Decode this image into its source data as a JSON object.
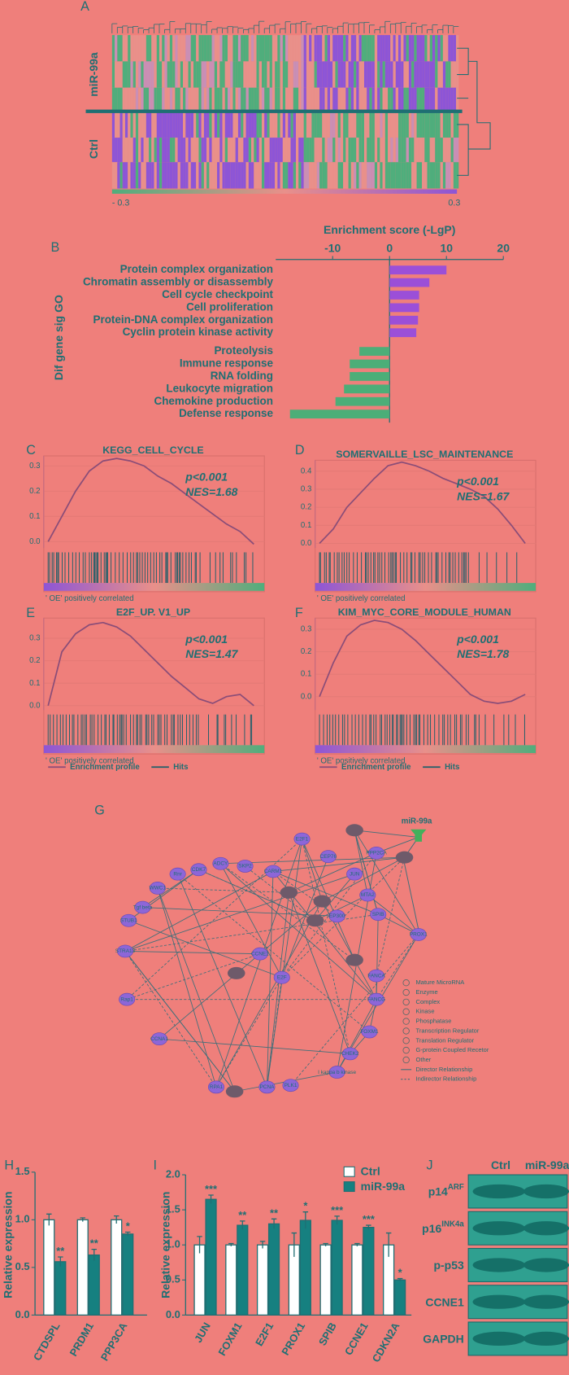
{
  "panel_labels": [
    "A",
    "B",
    "C",
    "D",
    "E",
    "F",
    "G",
    "H",
    "I",
    "J"
  ],
  "heatmap": {
    "groups": [
      "miR-99a",
      "Ctrl"
    ],
    "scale_labels": [
      "- 0.3",
      "0.3"
    ]
  },
  "chart_data": [
    {
      "type": "hbar",
      "xlabel": "Enrichment score  (-LgP)",
      "ylabel": "Dif gene sig  GO",
      "categories": [
        "Protein complex organization",
        "Chromatin assembly or disassembly",
        "Cell cycle checkpoint",
        "Cell proliferation",
        "Protein-DNA complex organization",
        "Cyclin protein kinase activity",
        "Proteolysis",
        "Immune response",
        "RNA folding",
        "Leukocyte migration",
        "Chemokine production",
        "Defense response"
      ],
      "values": [
        10,
        7,
        5.2,
        5.2,
        5,
        4.7,
        -5.3,
        -7,
        -7,
        -8,
        -9.5,
        -17.5
      ],
      "colors": {
        "positive": "#9b4fd8",
        "negative": "#4cae78"
      },
      "xlim": [
        -20,
        20
      ],
      "xticks": [
        -10,
        0,
        10,
        20
      ]
    },
    {
      "type": "gsea",
      "title": "KEGG_CELL_CYCLE",
      "annotations": [
        "p<0.001",
        "NES=1.68"
      ],
      "correlation_label": "' OE' positively correlated",
      "values": [
        0,
        0.1,
        0.2,
        0.28,
        0.32,
        0.33,
        0.32,
        0.3,
        0.26,
        0.23,
        0.19,
        0.15,
        0.11,
        0.07,
        0.04,
        -0.01
      ],
      "ylim": [
        -0.025,
        0.34
      ],
      "yticks": [
        {
          "value": 0,
          "label": "0.0"
        },
        0.1,
        0.2,
        0.3
      ],
      "color": "#8a4d78",
      "grid": true
    },
    {
      "type": "gsea",
      "title": "SOMERVAILLE_LSC_MAINTENANCE",
      "annotations": [
        "p<0.001",
        "NES=1.67"
      ],
      "correlation_label": "' OE' positively correlated",
      "values": [
        0,
        0.08,
        0.2,
        0.28,
        0.36,
        0.43,
        0.45,
        0.43,
        0.4,
        0.36,
        0.33,
        0.3,
        0.26,
        0.19,
        0.1,
        0
      ],
      "ylim": [
        -0.025,
        0.46
      ],
      "yticks": [
        {
          "value": 0,
          "label": "0.0"
        },
        0.1,
        0.2,
        0.3,
        0.4
      ],
      "color": "#8a4d78",
      "grid": true
    },
    {
      "type": "gsea",
      "title": "E2F_UP. V1_UP",
      "annotations": [
        "p<0.001",
        "NES=1.47"
      ],
      "correlation_label": "' OE' positively correlated",
      "values": [
        0,
        0.24,
        0.32,
        0.36,
        0.37,
        0.35,
        0.31,
        0.25,
        0.19,
        0.13,
        0.08,
        0.03,
        0.01,
        0.04,
        0.05,
        0
      ],
      "ylim": [
        -0.02,
        0.39
      ],
      "yticks": [
        {
          "value": 0,
          "label": "0.0"
        },
        0.1,
        0.2,
        0.3
      ],
      "color": "#8a4d78",
      "grid": true
    },
    {
      "type": "gsea",
      "title": "KIM_MYC_CORE_MODULE_HUMAN",
      "annotations": [
        "p<0.001",
        "NES=1.78"
      ],
      "correlation_label": "' OE' positively correlated",
      "values": [
        0,
        0.15,
        0.27,
        0.32,
        0.34,
        0.33,
        0.3,
        0.25,
        0.19,
        0.13,
        0.07,
        0.01,
        -0.02,
        -0.03,
        -0.02,
        0.01
      ],
      "ylim": [
        -0.06,
        0.35
      ],
      "yticks": [
        {
          "value": 0,
          "label": "0.0"
        },
        0.1,
        0.2,
        0.3
      ],
      "color": "#8a4d78",
      "grid": true
    },
    {
      "type": "bar",
      "ylabel": "Relative expression",
      "categories": [
        "CTDSPL",
        "PRDM1",
        "PPP3CA"
      ],
      "series": [
        {
          "color": "#ffffff",
          "values": [
            1.0,
            1.0,
            1.0
          ],
          "errors": [
            0.06,
            0.02,
            0.04
          ]
        },
        {
          "color": "#168080",
          "values": [
            0.56,
            0.63,
            0.85
          ],
          "errors": [
            0.05,
            0.06,
            0.02
          ]
        }
      ],
      "significance": [
        "**",
        "**",
        "*"
      ],
      "ylim": [
        0,
        1.5
      ],
      "yticks": [
        {
          "value": 0,
          "label": "0.0"
        },
        0.5,
        {
          "value": 1,
          "label": "1.0"
        },
        1.5
      ]
    },
    {
      "type": "bar",
      "ylabel": "Relative expression",
      "categories": [
        "JUN",
        "FOXM1",
        "E2F1",
        "PROX1",
        "SPIB",
        "CCNE1",
        "CDKN2A"
      ],
      "series": [
        {
          "name": "Ctrl",
          "color": "#ffffff",
          "values": [
            1.0,
            1.0,
            1.0,
            1.0,
            1.0,
            1.0,
            1.0
          ],
          "errors": [
            0.12,
            0.02,
            0.05,
            0.17,
            0.02,
            0.02,
            0.17
          ]
        },
        {
          "name": "miR-99a",
          "color": "#168080",
          "values": [
            1.65,
            1.28,
            1.3,
            1.35,
            1.35,
            1.25,
            0.5
          ],
          "errors": [
            0.06,
            0.06,
            0.07,
            0.12,
            0.06,
            0.03,
            0.02
          ]
        }
      ],
      "significance": [
        "***",
        "**",
        "**",
        "*",
        "***",
        "***",
        "*"
      ],
      "ylim": [
        0,
        2
      ],
      "yticks": [
        {
          "value": 0,
          "label": "0.0"
        },
        0.5,
        {
          "value": 1,
          "label": "1.0"
        },
        1.5,
        {
          "value": 2,
          "label": "2.0"
        }
      ]
    }
  ],
  "gsea_legend": [
    "Enrichment profile",
    "Hits"
  ],
  "network": {
    "mirna": "miR-99a",
    "nodes": [
      "E2F1",
      "CEP76",
      "PPP2CA",
      "JUN",
      "CDK7",
      "ADCY",
      "SKP2",
      "CARM1",
      "Rnr",
      "MTA2",
      "WWC1",
      "Tgf beta",
      "STUB1",
      "EP300",
      "SPIB",
      "PROX1",
      "STRA13",
      "CCNE1",
      "E2F",
      "FANCA",
      "Rap1",
      "FANCG",
      "FOXM1",
      "CCNA1",
      "CHEK2",
      "I kappa b kinase",
      "RPA1",
      "PCNA",
      "PLK1"
    ],
    "legend": [
      "Mature MicroRNA",
      "Enzyme",
      "Complex",
      "Kinase",
      "Phosphatase",
      "Transcription Regulator",
      "Translation Regulator",
      "G-protein Coupled Recetor",
      "Other",
      "Director Relationship",
      "Indirector Relationship"
    ]
  },
  "western_blot": {
    "columns": [
      "Ctrl",
      "miR-99a"
    ],
    "rows": [
      {
        "name": "p14",
        "sup": "ARF"
      },
      {
        "name": "p16",
        "sup": "INK4a"
      },
      {
        "name": "p-p53"
      },
      {
        "name": "CCNE1"
      },
      {
        "name": "GAPDH"
      }
    ]
  }
}
